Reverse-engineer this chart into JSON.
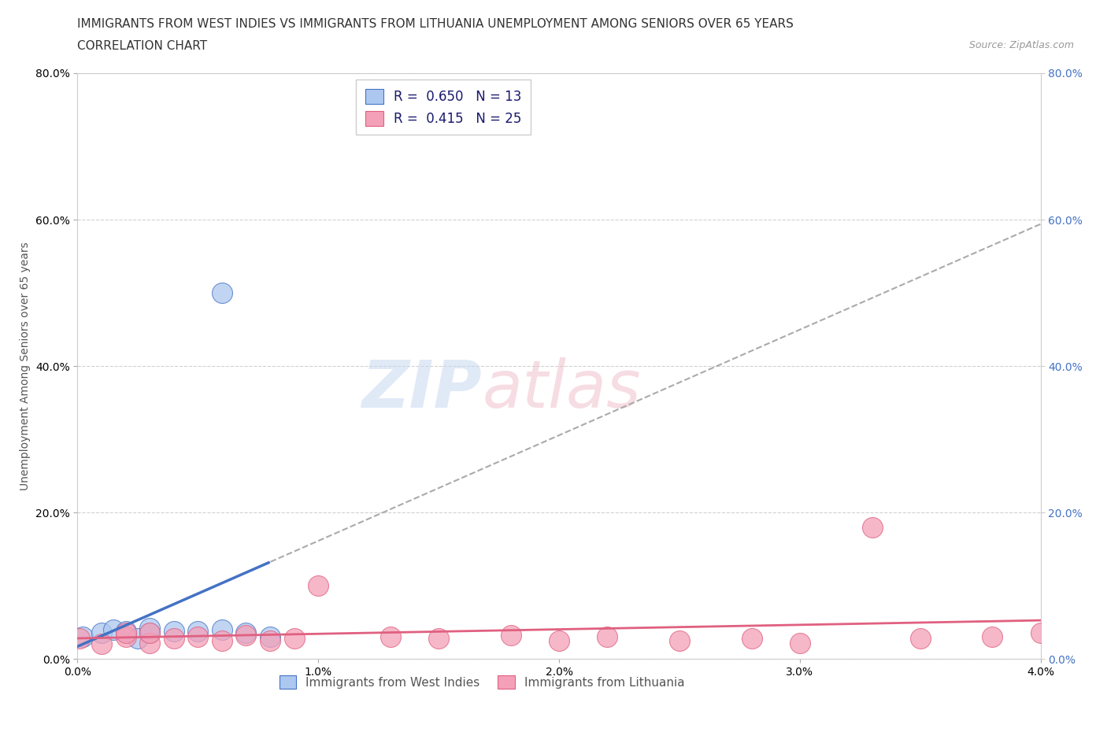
{
  "title_line1": "IMMIGRANTS FROM WEST INDIES VS IMMIGRANTS FROM LITHUANIA UNEMPLOYMENT AMONG SENIORS OVER 65 YEARS",
  "title_line2": "CORRELATION CHART",
  "source_text": "Source: ZipAtlas.com",
  "ylabel": "Unemployment Among Seniors over 65 years",
  "xlim": [
    0.0,
    0.04
  ],
  "ylim": [
    0.0,
    0.8
  ],
  "west_indies_R": 0.65,
  "west_indies_N": 13,
  "lithuania_R": 0.415,
  "lithuania_N": 25,
  "west_indies_fill_color": "#adc8f0",
  "west_indies_edge_color": "#4472c4",
  "lithuania_fill_color": "#f4a0b8",
  "lithuania_edge_color": "#e06080",
  "trendline_wi_color": "#4472c4",
  "trendline_li_color": "#e06080",
  "legend_label_wi": "Immigrants from West Indies",
  "legend_label_li": "Immigrants from Lithuania",
  "watermark_zip": "ZIP",
  "watermark_atlas": "atlas",
  "background_color": "#ffffff",
  "grid_color": "#cccccc",
  "title_fontsize": 11,
  "axis_label_fontsize": 10,
  "tick_fontsize": 10,
  "wi_x": [
    0.0002,
    0.0005,
    0.001,
    0.0015,
    0.002,
    0.003,
    0.004,
    0.005,
    0.006,
    0.007,
    0.008,
    0.009,
    0.006
  ],
  "wi_y": [
    0.025,
    0.03,
    0.035,
    0.04,
    0.045,
    0.038,
    0.042,
    0.04,
    0.5,
    0.038,
    0.03,
    0.035,
    0.04
  ],
  "li_x": [
    0.0001,
    0.001,
    0.002,
    0.003,
    0.004,
    0.005,
    0.006,
    0.007,
    0.008,
    0.009,
    0.01,
    0.012,
    0.014,
    0.016,
    0.018,
    0.02,
    0.022,
    0.025,
    0.028,
    0.03,
    0.033,
    0.035,
    0.037,
    0.039,
    0.04
  ],
  "li_y": [
    0.02,
    0.025,
    0.03,
    0.035,
    0.025,
    0.028,
    0.032,
    0.03,
    0.028,
    0.032,
    0.025,
    0.03,
    0.1,
    0.035,
    0.03,
    0.028,
    0.035,
    0.04,
    0.03,
    0.025,
    0.18,
    0.025,
    0.03,
    0.028,
    0.035
  ]
}
